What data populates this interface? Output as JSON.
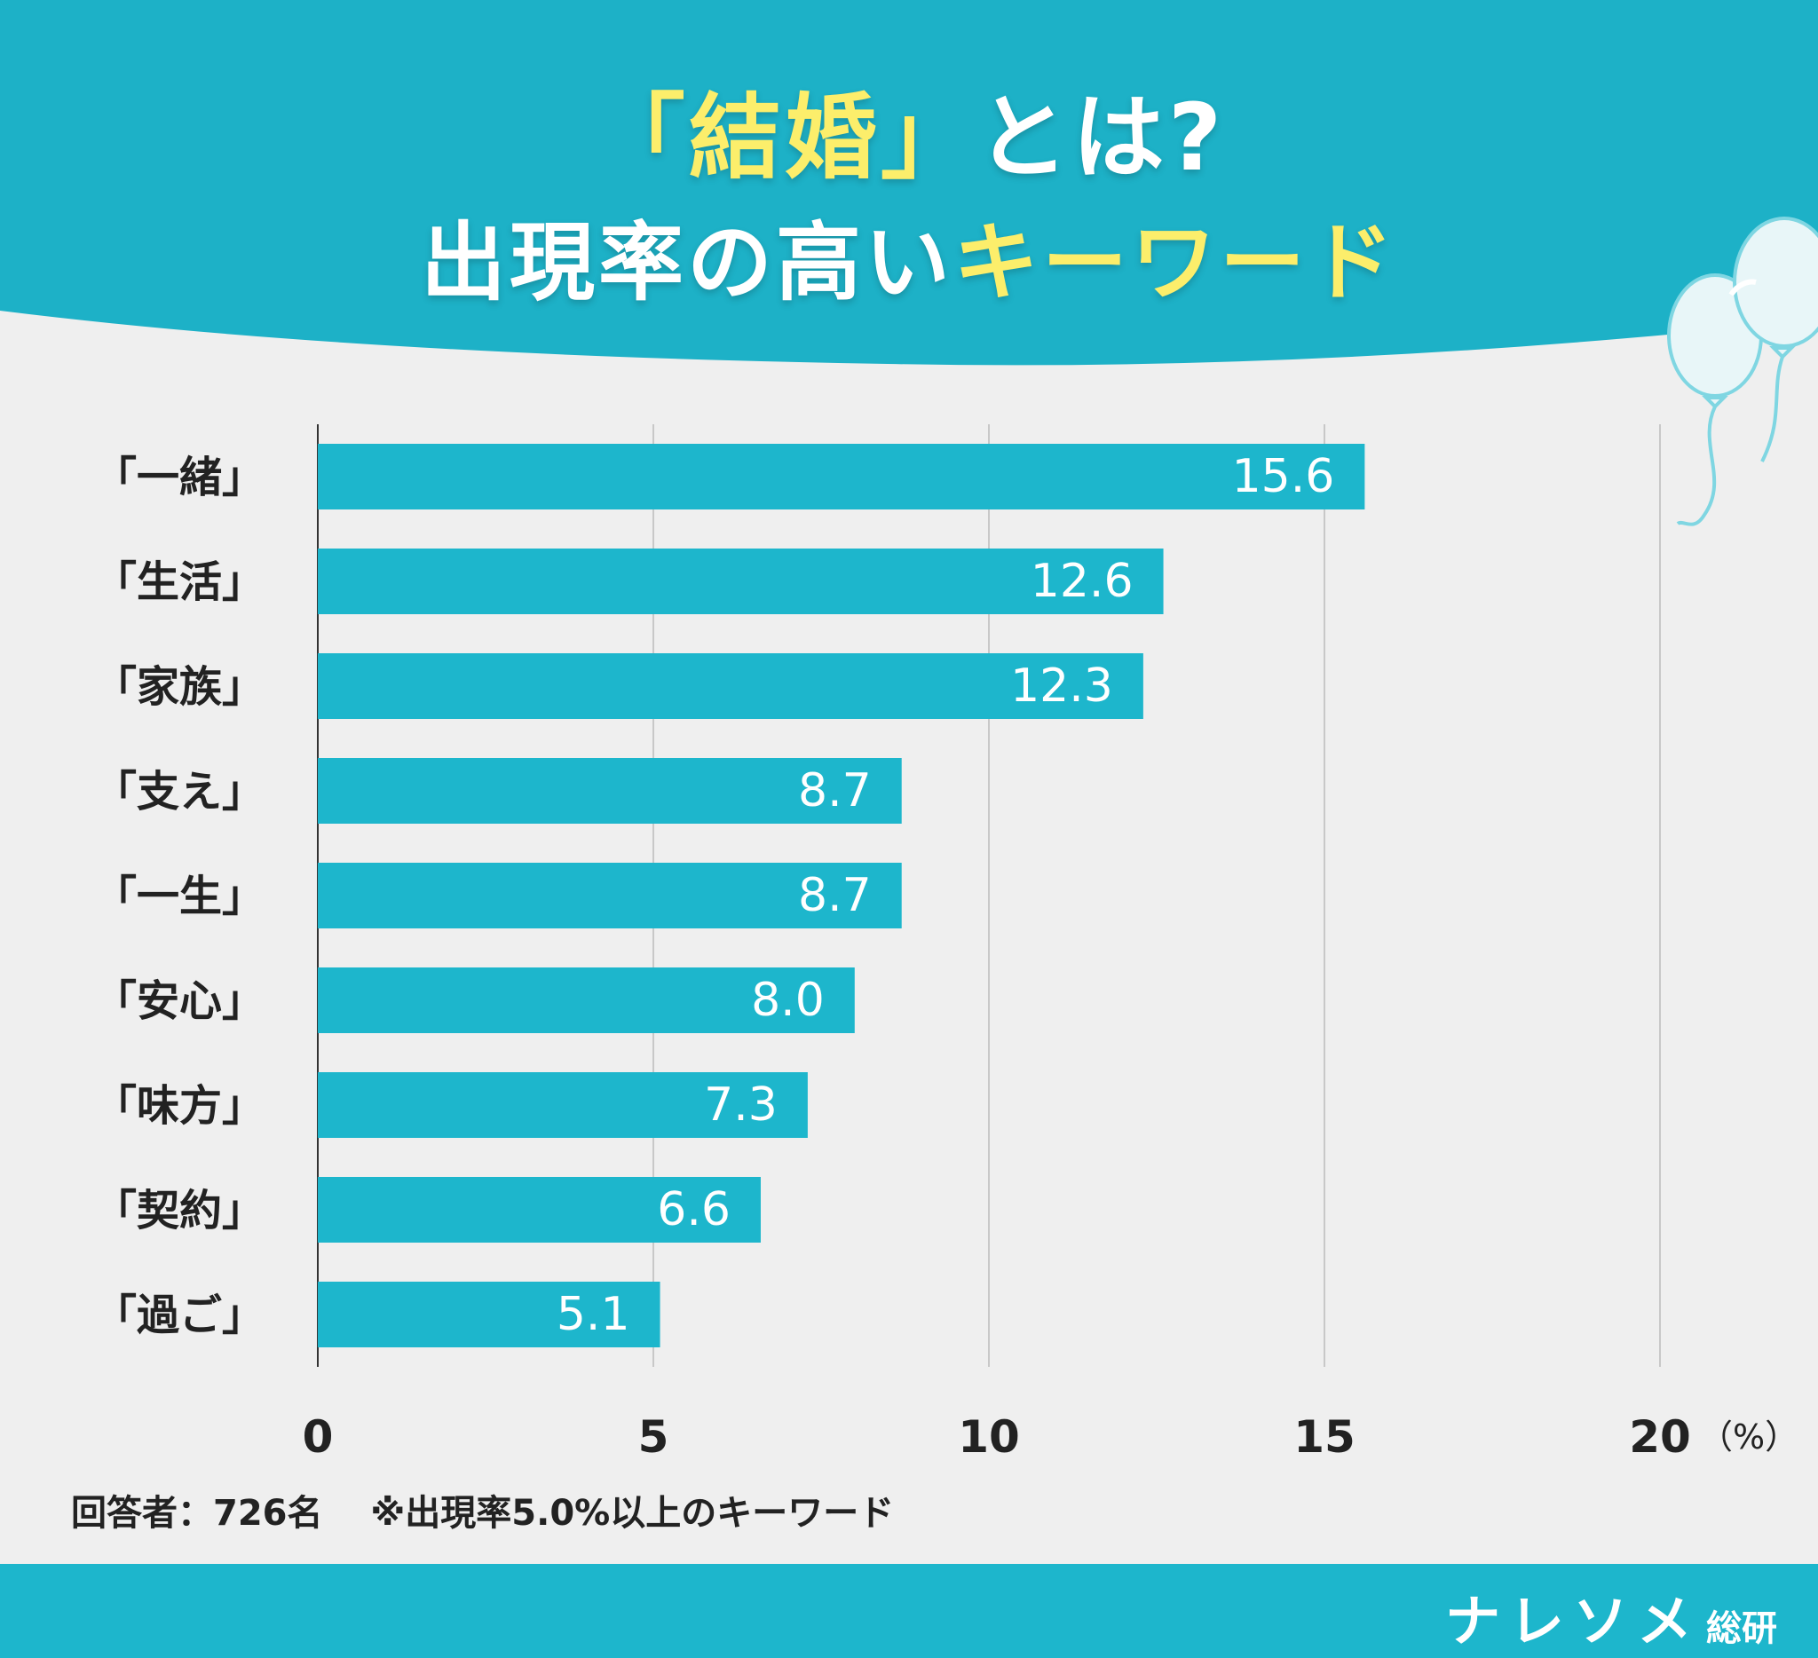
{
  "header": {
    "title_part1": "「結婚」",
    "title_part2": "とは?",
    "subtitle_part1": "出現率の高い",
    "subtitle_part2": "キーワード"
  },
  "colors": {
    "header_bg": "#1db1c7",
    "bar": "#1db6cc",
    "accent_yellow": "#fcee6b",
    "page_bg": "#efefef"
  },
  "chart_data": {
    "type": "bar",
    "orientation": "horizontal",
    "categories": [
      "「一緒」",
      "「生活」",
      "「家族」",
      "「支え」",
      "「一生」",
      "「安心」",
      "「味方」",
      "「契約」",
      "「過ご」"
    ],
    "values": [
      15.6,
      12.6,
      12.3,
      8.7,
      8.7,
      8.0,
      7.3,
      6.6,
      5.1
    ],
    "value_labels": [
      "15.6",
      "12.6",
      "12.3",
      "8.7",
      "8.7",
      "8.0",
      "7.3",
      "6.6",
      "5.1"
    ],
    "xticks": [
      0,
      5,
      10,
      15,
      20
    ],
    "xtick_labels": [
      "0",
      "5",
      "10",
      "15",
      "20"
    ],
    "xlim": [
      0,
      20
    ],
    "unit_label": "（%）",
    "grid": true
  },
  "footnote": "回答者：726名　 ※出現率5.0%以上のキーワード",
  "footer": {
    "brand": "ナレソメ",
    "brand_sub": "総研"
  }
}
